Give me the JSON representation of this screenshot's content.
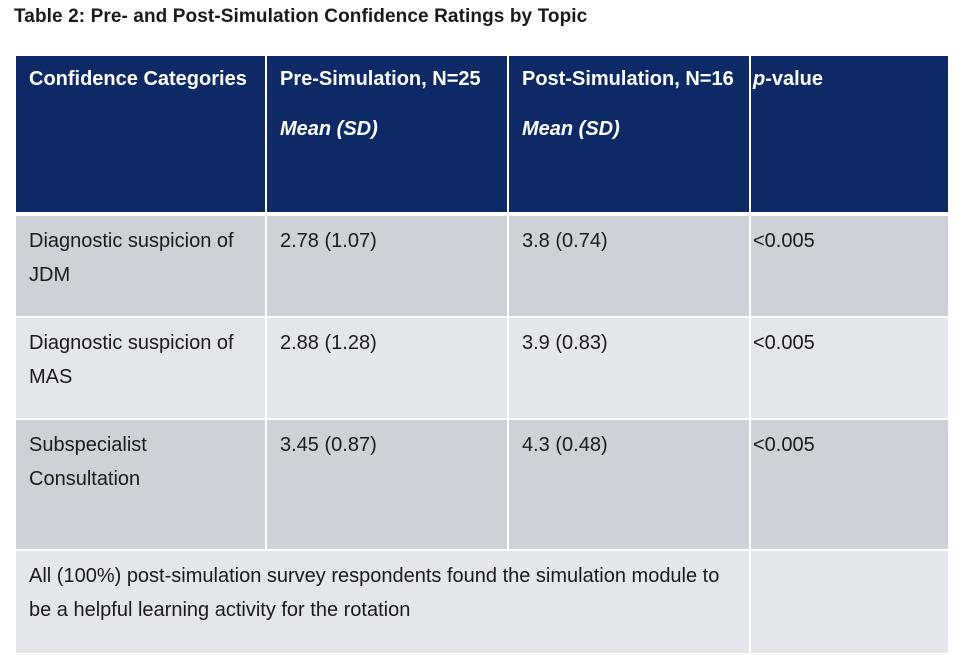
{
  "title": "Table 2: Pre- and Post-Simulation Confidence Ratings by Topic",
  "header": {
    "col1": "Confidence Categories",
    "col2_line1": "Pre-Simulation, N=25",
    "col2_sub": "Mean (SD)",
    "col3_line1": "Post-Simulation, N=16",
    "col3_sub": "Mean (SD)",
    "col4_p": "p",
    "col4_rest": "-value"
  },
  "rows": [
    {
      "category": "Diagnostic suspicion of JDM",
      "pre": "2.78 (1.07)",
      "post": "3.8 (0.74)",
      "p": "<0.005"
    },
    {
      "category": "Diagnostic suspicion of MAS",
      "pre": "2.88 (1.28)",
      "post": "3.9 (0.83)",
      "p": "<0.005"
    },
    {
      "category": "Subspecialist Consultation",
      "pre": "3.45 (0.87)",
      "post": "4.3 (0.48)",
      "p": "<0.005"
    }
  ],
  "footnote": "All (100%) post-simulation survey respondents found the simulation module to be a helpful learning activity for the rotation",
  "colors": {
    "header_bg": "#0e2a66",
    "row_dark": "#cdd1d8",
    "row_light": "#e3e6ea"
  }
}
